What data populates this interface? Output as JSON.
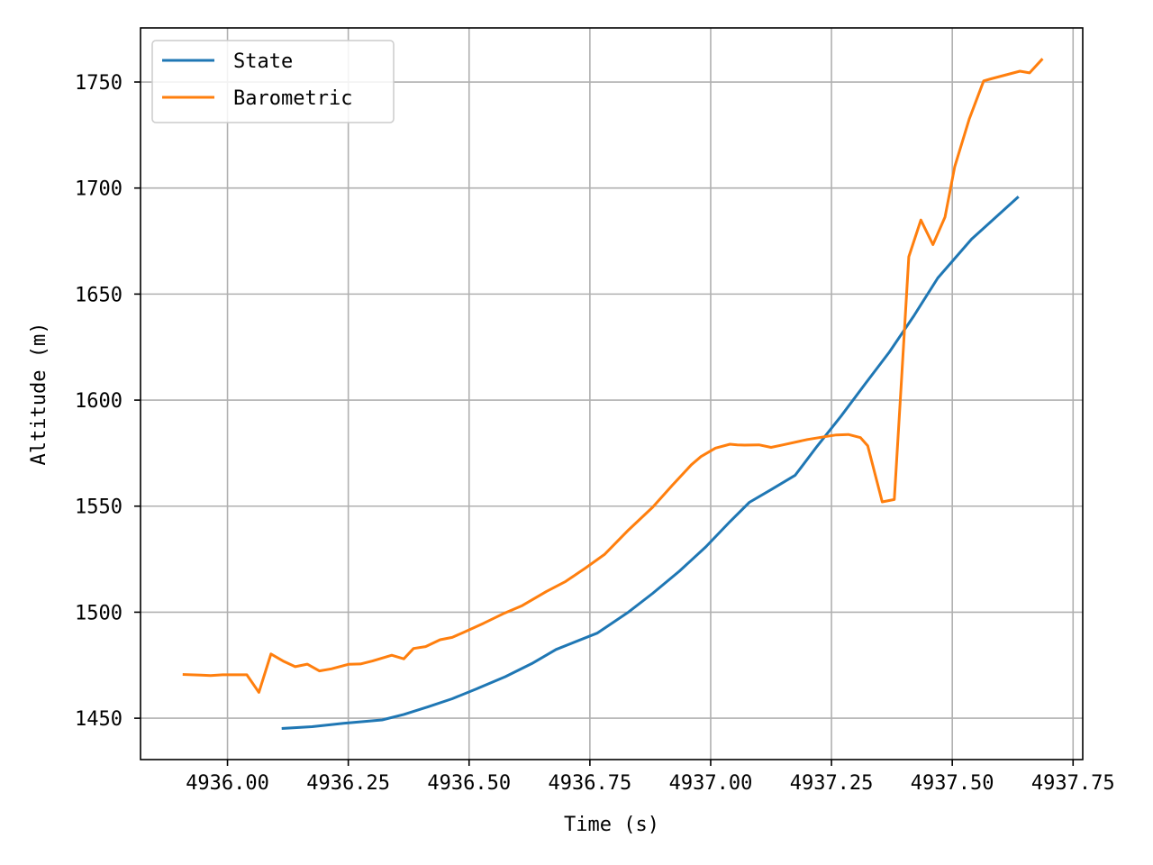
{
  "chart_data": {
    "type": "line",
    "title": "",
    "xlabel": "Time (s)",
    "ylabel": "Altitude (m)",
    "xlim": [
      4935.82,
      4937.77
    ],
    "ylim": [
      1430.5,
      1775.5
    ],
    "grid": true,
    "legend_position": "top-left",
    "x_ticks": [
      4936.0,
      4936.25,
      4936.5,
      4936.75,
      4937.0,
      4937.25,
      4937.5,
      4937.75
    ],
    "x_tick_labels": [
      "4936.00",
      "4936.25",
      "4936.50",
      "4936.75",
      "4937.00",
      "4937.25",
      "4937.50",
      "4937.75"
    ],
    "y_ticks": [
      1450,
      1500,
      1550,
      1600,
      1650,
      1700,
      1750
    ],
    "y_tick_labels": [
      "1450",
      "1500",
      "1550",
      "1600",
      "1650",
      "1700",
      "1750"
    ],
    "series": [
      {
        "name": "State",
        "color": "#1f77b4",
        "x": [
          4936.115,
          4936.175,
          4936.24,
          4936.32,
          4936.365,
          4936.415,
          4936.465,
          4936.515,
          4936.575,
          4936.63,
          4936.68,
          4936.765,
          4936.83,
          4936.88,
          4936.935,
          4936.99,
          4937.04,
          4937.08,
          4937.125,
          4937.175,
          4937.22,
          4937.27,
          4937.32,
          4937.37,
          4937.42,
          4937.47,
          4937.54,
          4937.635
        ],
        "y": [
          1445.2,
          1446,
          1447.6,
          1449.2,
          1451.8,
          1455.4,
          1459.2,
          1463.8,
          1469.6,
          1475.8,
          1482.4,
          1490.1,
          1500.1,
          1508.9,
          1519.3,
          1530.8,
          1542.7,
          1551.8,
          1557.8,
          1564.6,
          1578.2,
          1592.5,
          1607.7,
          1622.7,
          1639.6,
          1657.6,
          1675.9,
          1695.5
        ]
      },
      {
        "name": "Barometric",
        "color": "#ff7f0e",
        "x": [
          4935.91,
          4935.945,
          4935.965,
          4935.99,
          4936.01,
          4936.04,
          4936.065,
          4936.09,
          4936.115,
          4936.14,
          4936.165,
          4936.19,
          4936.215,
          4936.25,
          4936.275,
          4936.3,
          4936.34,
          4936.365,
          4936.385,
          4936.41,
          4936.44,
          4936.465,
          4936.49,
          4936.53,
          4936.57,
          4936.61,
          4936.66,
          4936.7,
          4936.74,
          4936.78,
          4936.83,
          4936.88,
          4936.92,
          4936.96,
          4936.98,
          4937.01,
          4937.04,
          4937.055,
          4937.07,
          4937.1,
          4937.125,
          4937.15,
          4937.2,
          4937.24,
          4937.26,
          4937.285,
          4937.31,
          4937.325,
          4937.355,
          4937.38,
          4937.395,
          4937.41,
          4937.435,
          4937.46,
          4937.485,
          4937.505,
          4937.535,
          4937.565,
          4937.58,
          4937.64,
          4937.66,
          4937.685
        ],
        "y": [
          1470.6,
          1470.3,
          1470.1,
          1470.5,
          1470.5,
          1470.5,
          1462.2,
          1480.3,
          1477,
          1474.3,
          1475.5,
          1472.3,
          1473.3,
          1475.4,
          1475.6,
          1477,
          1479.7,
          1478,
          1482.9,
          1483.8,
          1487,
          1488.1,
          1490.6,
          1494.8,
          1499.2,
          1503.1,
          1509.8,
          1514.5,
          1520.7,
          1527.2,
          1538.8,
          1549.5,
          1559.7,
          1569.5,
          1573.4,
          1577.4,
          1579.2,
          1578.9,
          1578.8,
          1578.9,
          1577.7,
          1578.9,
          1581.4,
          1582.9,
          1583.6,
          1583.8,
          1582.3,
          1578.5,
          1552,
          1553.1,
          1609.5,
          1667.6,
          1684.9,
          1673.3,
          1686.3,
          1710.1,
          1732.4,
          1750.5,
          1751.5,
          1755.1,
          1754.3,
          1760.5
        ]
      }
    ]
  }
}
